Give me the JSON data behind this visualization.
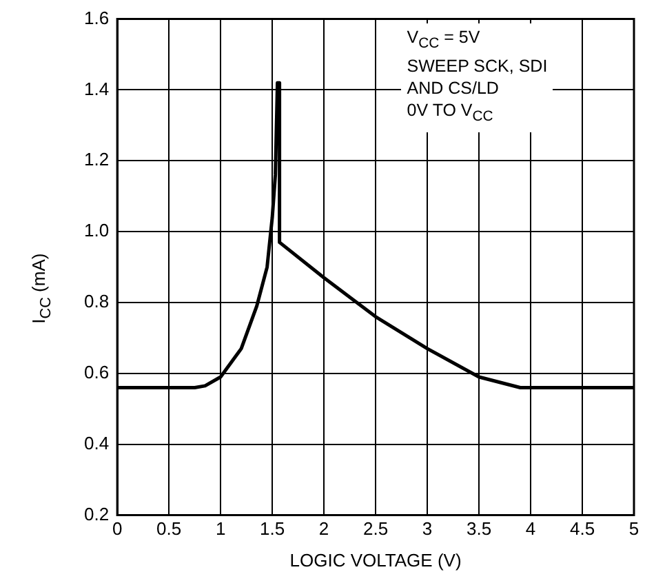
{
  "chart_data": {
    "type": "line",
    "xlabel": "LOGIC VOLTAGE (V)",
    "ylabel": "I$_{CC}$ (mA)",
    "annotations": [
      "V$_{CC}$ = 5V",
      "SWEEP SCK, SDI",
      "AND CS/LD",
      "0V TO V$_{CC}$"
    ],
    "x": [
      0,
      0.75,
      0.85,
      1.0,
      1.2,
      1.35,
      1.45,
      1.5,
      1.53,
      1.55,
      1.57,
      1.57,
      2.0,
      2.5,
      3.0,
      3.5,
      3.9,
      5
    ],
    "series": [
      {
        "color": "#000000",
        "values": [
          0.56,
          0.56,
          0.565,
          0.59,
          0.67,
          0.79,
          0.9,
          1.04,
          1.16,
          1.42,
          1.42,
          0.97,
          0.87,
          0.76,
          0.67,
          0.59,
          0.56,
          0.56
        ]
      }
    ],
    "xlim": [
      0,
      5
    ],
    "xticks": [
      0,
      0.5,
      1,
      1.5,
      2,
      2.5,
      3,
      3.5,
      4,
      4.5,
      5
    ],
    "ylim": [
      0.2,
      1.6
    ],
    "yticks": [
      {
        "value": 0.2,
        "label": "0.2"
      },
      {
        "value": 0.4,
        "label": "0.4"
      },
      {
        "value": 0.6,
        "label": "0.6"
      },
      {
        "value": 0.8,
        "label": "0.8"
      },
      {
        "value": 1.0,
        "label": "1.0"
      },
      {
        "value": 1.2,
        "label": "1.2"
      },
      {
        "value": 1.4,
        "label": "1.4"
      },
      {
        "value": 1.6,
        "label": "1.6"
      }
    ],
    "grid": true,
    "legend": false,
    "marker": "none",
    "line_style": "solid"
  }
}
